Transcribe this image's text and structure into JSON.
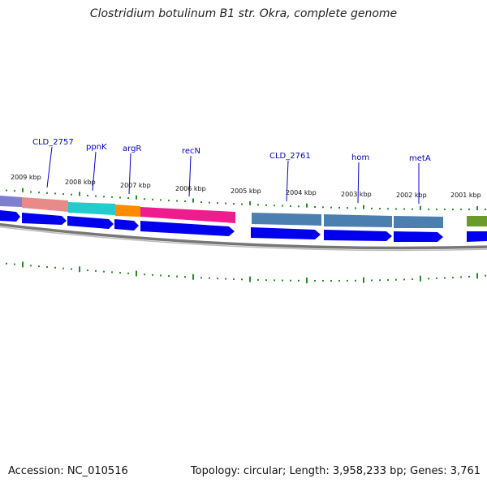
{
  "title": "Clostridium botulinum B1 str. Okra, complete genome",
  "footer": {
    "accession": "Accession: NC_010516",
    "summary": "Topology: circular; Length: 3,958,233 bp; Genes: 3,761"
  },
  "colors": {
    "cds_arrow": "#0000ee",
    "backbone": "#777777",
    "tick": "#2a8a2a",
    "label": "#0000cc",
    "gc_row": "#007700"
  },
  "tick_labels": [
    "2009 kbp",
    "2008 kbp",
    "2007 kbp",
    "2006 kbp",
    "2005 kbp",
    "2004 kbp",
    "2003 kbp",
    "2002 kbp",
    "2001 kbp"
  ],
  "gene_labels": [
    "CLD_2757",
    "ppnK",
    "argR",
    "recN",
    "CLD_2761",
    "hom",
    "metA"
  ],
  "features": [
    {
      "name": "left-partial",
      "color": "#7f7fcf"
    },
    {
      "name": "CLD_2757",
      "color": "#e88a8a"
    },
    {
      "name": "ppnK",
      "color": "#22cccc"
    },
    {
      "name": "argR",
      "color": "#ff8c00"
    },
    {
      "name": "recN",
      "color": "#ee1c8c"
    },
    {
      "name": "CLD_2761",
      "color": "#4a7fb0"
    },
    {
      "name": "hom",
      "color": "#4a7fb0"
    },
    {
      "name": "metA",
      "color": "#4a7fb0"
    },
    {
      "name": "right-partial",
      "color": "#6a9a2a"
    }
  ]
}
